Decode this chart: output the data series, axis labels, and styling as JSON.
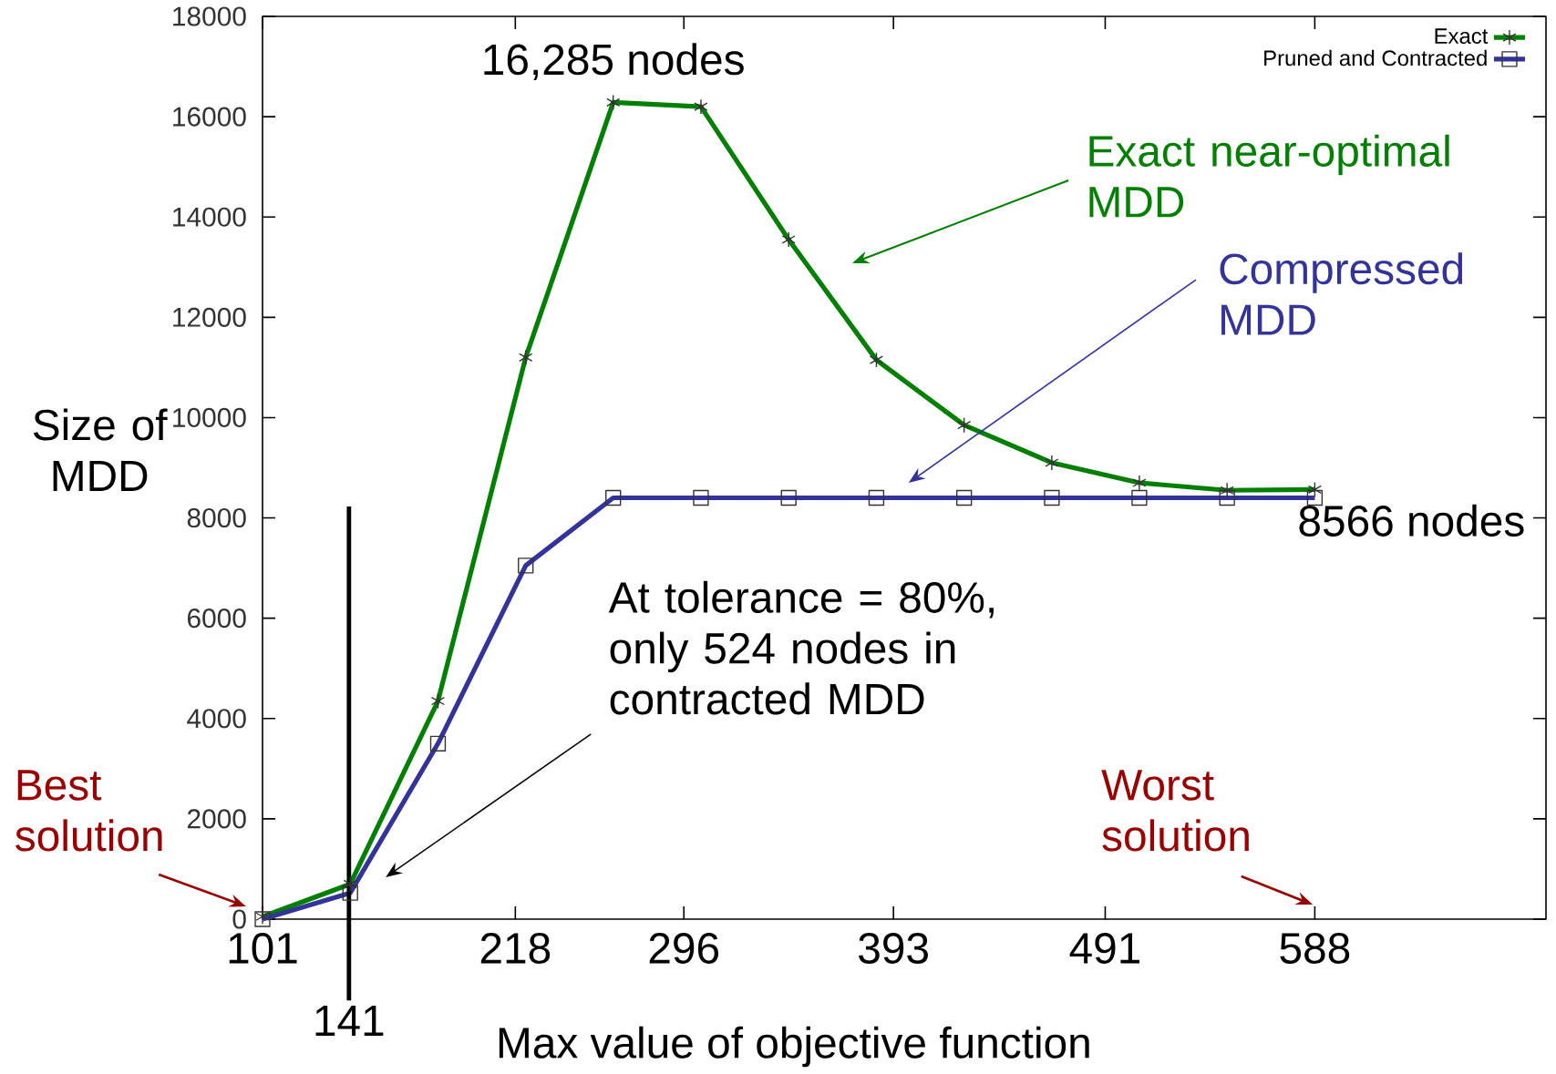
{
  "chart_data": {
    "type": "line",
    "xlabel": "Max value of objective function",
    "ylabel": "Size of MDD",
    "x": [
      101,
      141.6,
      182.2,
      222.8,
      263.3,
      303.9,
      344.5,
      385.1,
      425.7,
      466.3,
      506.8,
      547.4,
      588
    ],
    "series": [
      {
        "name": "Exact",
        "color": "#007f00",
        "marker": "cross",
        "values": [
          50,
          700,
          4350,
          11200,
          16285,
          16200,
          13550,
          11150,
          9850,
          9100,
          8700,
          8550,
          8566
        ]
      },
      {
        "name": "Pruned and Contracted",
        "color": "#333399",
        "marker": "square",
        "values": [
          0,
          524,
          3500,
          7050,
          8400,
          8400,
          8400,
          8400,
          8400,
          8400,
          8400,
          8400,
          8400
        ]
      }
    ],
    "xlim": [
      101,
      695
    ],
    "ylim": [
      0,
      18000
    ],
    "xticks": [
      101,
      218,
      296,
      393,
      491,
      588
    ],
    "yticks": [
      0,
      2000,
      4000,
      6000,
      8000,
      10000,
      12000,
      14000,
      16000,
      18000
    ],
    "ref_lines": [
      {
        "axis": "x",
        "value": 141,
        "label": "141",
        "color": "#000000"
      }
    ],
    "annotations": [
      {
        "text": "16,285 nodes",
        "x": 263.3,
        "y": 16285
      },
      {
        "text": "8566 nodes",
        "x": 588,
        "y": 8566
      },
      "At tolerance = 80%, only 524 nodes in contracted MDD",
      {
        "text": "Best solution",
        "x": 101,
        "y": 0
      },
      "Worst solution",
      "Exact near-optimal MDD",
      "Compressed MDD"
    ],
    "legend": "top right",
    "grid": false
  }
}
